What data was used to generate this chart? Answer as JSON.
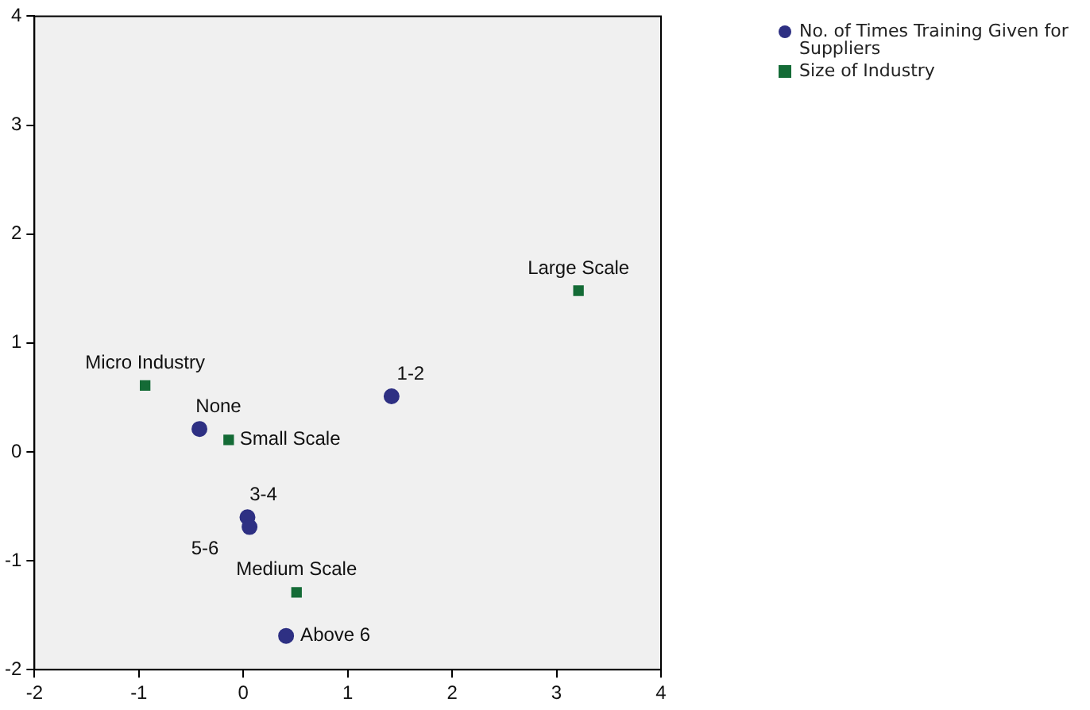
{
  "chart_data": {
    "type": "scatter",
    "legend": "top right",
    "grid": false,
    "xlim": [
      -2,
      4
    ],
    "xticks": [
      -2,
      -1,
      0,
      1,
      2,
      3,
      4
    ],
    "ylim": [
      -2,
      4
    ],
    "yticks": [
      -2,
      -1,
      0,
      1,
      2,
      3,
      4
    ],
    "series": [
      {
        "name": "No. of Times Training Given for Suppliers",
        "color": "#2e3083",
        "marker": "circle",
        "x": [
          -0.42,
          1.42,
          0.04,
          0.06,
          0.41
        ],
        "values": [
          0.21,
          0.51,
          -0.6,
          -0.69,
          -1.69
        ]
      },
      {
        "name": "Size of Industry",
        "color": "#146b36",
        "marker": "square",
        "x": [
          -0.94,
          3.21,
          -0.14,
          0.51
        ],
        "values": [
          0.61,
          1.48,
          0.11,
          -1.29
        ]
      }
    ],
    "annotations": [
      {
        "text": "None",
        "x": -0.42,
        "y": 0.21
      },
      {
        "text": "1-2",
        "x": 1.42,
        "y": 0.51
      },
      {
        "text": "3-4",
        "x": 0.04,
        "y": -0.6
      },
      {
        "text": "5-6",
        "x": 0.06,
        "y": -0.69
      },
      {
        "text": "Above 6",
        "x": 0.41,
        "y": -1.69
      },
      {
        "text": "Micro Industry",
        "x": -0.94,
        "y": 0.61
      },
      {
        "text": "Large Scale",
        "x": 3.21,
        "y": 1.48
      },
      {
        "text": "Small Scale",
        "x": -0.14,
        "y": 0.11
      },
      {
        "text": "Medium Scale",
        "x": 0.51,
        "y": -1.29
      }
    ]
  }
}
